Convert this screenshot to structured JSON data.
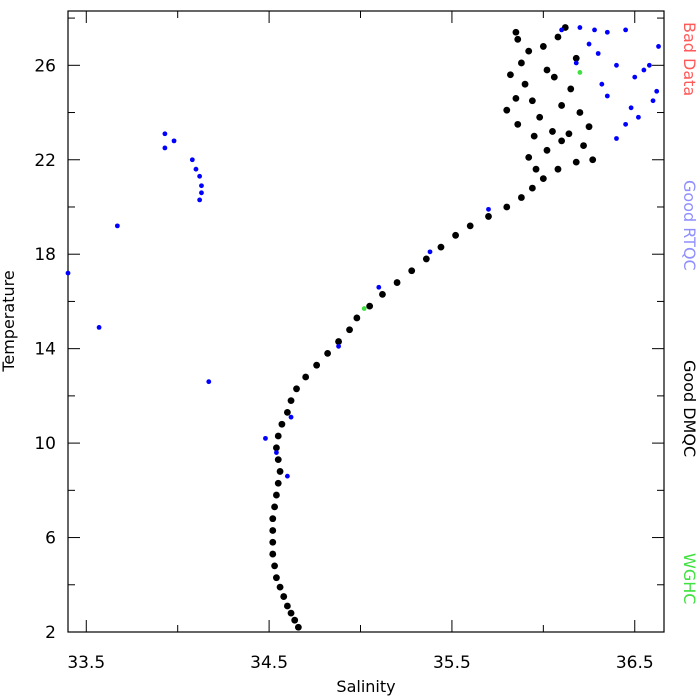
{
  "chart_data": {
    "type": "scatter",
    "title": "",
    "xlabel": "Salinity",
    "ylabel": "Temperature",
    "xlim": [
      33.4,
      36.66
    ],
    "ylim": [
      2,
      28.3
    ],
    "x_ticks": [
      {
        "value": 33.5,
        "label": "33.5"
      },
      {
        "value": 34.5,
        "label": "34.5"
      },
      {
        "value": 35.5,
        "label": "35.5"
      },
      {
        "value": 36.5,
        "label": "36.5"
      }
    ],
    "x_minor_ticks": [
      34.0,
      35.0,
      36.0
    ],
    "y_ticks": [
      {
        "value": 2,
        "label": "2"
      },
      {
        "value": 6,
        "label": "6"
      },
      {
        "value": 10,
        "label": "10"
      },
      {
        "value": 14,
        "label": "14"
      },
      {
        "value": 18,
        "label": "18"
      },
      {
        "value": 22,
        "label": "22"
      },
      {
        "value": 26,
        "label": "26"
      }
    ],
    "y_minor_ticks": [
      4,
      8,
      12,
      16,
      20,
      24,
      28
    ],
    "grid": false,
    "legend_placement": "right (vertical text)",
    "legend": [
      {
        "label": "Bad Data",
        "color": "#ff5a5a"
      },
      {
        "label": "Good RTQC",
        "color": "#8f8fff"
      },
      {
        "label": "Good DMQC",
        "color": "#000000"
      },
      {
        "label": "WGHC",
        "color": "#40e040"
      }
    ],
    "series": [
      {
        "name": "Good DMQC",
        "color": "#000000",
        "points": [
          [
            34.66,
            2.2
          ],
          [
            34.64,
            2.5
          ],
          [
            34.62,
            2.8
          ],
          [
            34.6,
            3.1
          ],
          [
            34.58,
            3.5
          ],
          [
            34.56,
            3.9
          ],
          [
            34.54,
            4.3
          ],
          [
            34.53,
            4.8
          ],
          [
            34.52,
            5.3
          ],
          [
            34.52,
            5.8
          ],
          [
            34.52,
            6.3
          ],
          [
            34.52,
            6.8
          ],
          [
            34.53,
            7.3
          ],
          [
            34.54,
            7.8
          ],
          [
            34.55,
            8.3
          ],
          [
            34.56,
            8.8
          ],
          [
            34.55,
            9.3
          ],
          [
            34.54,
            9.8
          ],
          [
            34.55,
            10.3
          ],
          [
            34.57,
            10.8
          ],
          [
            34.6,
            11.3
          ],
          [
            34.62,
            11.8
          ],
          [
            34.65,
            12.3
          ],
          [
            34.7,
            12.8
          ],
          [
            34.76,
            13.3
          ],
          [
            34.82,
            13.8
          ],
          [
            34.88,
            14.3
          ],
          [
            34.94,
            14.8
          ],
          [
            34.98,
            15.3
          ],
          [
            35.05,
            15.8
          ],
          [
            35.12,
            16.3
          ],
          [
            35.2,
            16.8
          ],
          [
            35.28,
            17.3
          ],
          [
            35.36,
            17.8
          ],
          [
            35.44,
            18.3
          ],
          [
            35.52,
            18.8
          ],
          [
            35.6,
            19.2
          ],
          [
            35.7,
            19.6
          ],
          [
            35.8,
            20.0
          ],
          [
            35.88,
            20.4
          ],
          [
            35.94,
            20.8
          ],
          [
            36.0,
            21.2
          ],
          [
            36.08,
            21.6
          ],
          [
            36.18,
            21.9
          ],
          [
            36.27,
            22.0
          ],
          [
            35.96,
            21.6
          ],
          [
            35.92,
            22.1
          ],
          [
            36.02,
            22.4
          ],
          [
            36.1,
            22.8
          ],
          [
            36.05,
            23.2
          ],
          [
            35.95,
            23.0
          ],
          [
            35.86,
            23.5
          ],
          [
            35.8,
            24.1
          ],
          [
            35.85,
            24.6
          ],
          [
            35.9,
            25.2
          ],
          [
            35.82,
            25.6
          ],
          [
            35.88,
            26.1
          ],
          [
            35.92,
            26.6
          ],
          [
            35.86,
            27.1
          ],
          [
            35.85,
            27.4
          ],
          [
            36.0,
            26.8
          ],
          [
            36.08,
            27.2
          ],
          [
            36.12,
            27.6
          ],
          [
            36.02,
            25.8
          ],
          [
            36.1,
            24.3
          ],
          [
            36.15,
            25.0
          ],
          [
            36.2,
            24.0
          ],
          [
            36.18,
            26.3
          ],
          [
            36.22,
            22.6
          ],
          [
            36.25,
            23.4
          ],
          [
            35.98,
            23.8
          ],
          [
            36.06,
            25.5
          ],
          [
            35.94,
            24.5
          ],
          [
            36.14,
            23.1
          ]
        ]
      },
      {
        "name": "Good RTQC",
        "color": "#0000ff",
        "points": [
          [
            33.93,
            23.1
          ],
          [
            33.93,
            22.5
          ],
          [
            33.98,
            22.8
          ],
          [
            34.08,
            22.0
          ],
          [
            34.1,
            21.6
          ],
          [
            34.12,
            21.3
          ],
          [
            34.13,
            20.9
          ],
          [
            34.13,
            20.6
          ],
          [
            34.12,
            20.3
          ],
          [
            33.67,
            19.2
          ],
          [
            33.4,
            17.2
          ],
          [
            33.57,
            14.9
          ],
          [
            34.17,
            12.6
          ],
          [
            34.48,
            10.2
          ],
          [
            34.62,
            11.1
          ],
          [
            34.54,
            9.6
          ],
          [
            34.6,
            8.6
          ],
          [
            34.88,
            14.1
          ],
          [
            35.1,
            16.6
          ],
          [
            35.38,
            18.1
          ],
          [
            35.7,
            19.9
          ],
          [
            36.1,
            27.5
          ],
          [
            36.2,
            27.6
          ],
          [
            36.28,
            27.5
          ],
          [
            36.35,
            27.4
          ],
          [
            36.45,
            27.5
          ],
          [
            36.3,
            26.5
          ],
          [
            36.4,
            26.0
          ],
          [
            36.5,
            25.5
          ],
          [
            36.55,
            25.8
          ],
          [
            36.6,
            24.5
          ],
          [
            36.62,
            24.9
          ],
          [
            36.63,
            26.8
          ],
          [
            36.58,
            26.0
          ],
          [
            36.48,
            24.2
          ],
          [
            36.45,
            23.5
          ],
          [
            36.4,
            22.9
          ],
          [
            36.35,
            24.7
          ],
          [
            36.25,
            26.9
          ],
          [
            36.32,
            25.2
          ],
          [
            36.52,
            23.8
          ],
          [
            36.18,
            26.1
          ]
        ]
      },
      {
        "name": "WGHC",
        "color": "#40e040",
        "points": [
          [
            35.02,
            15.7
          ],
          [
            36.2,
            25.7
          ]
        ]
      }
    ]
  }
}
